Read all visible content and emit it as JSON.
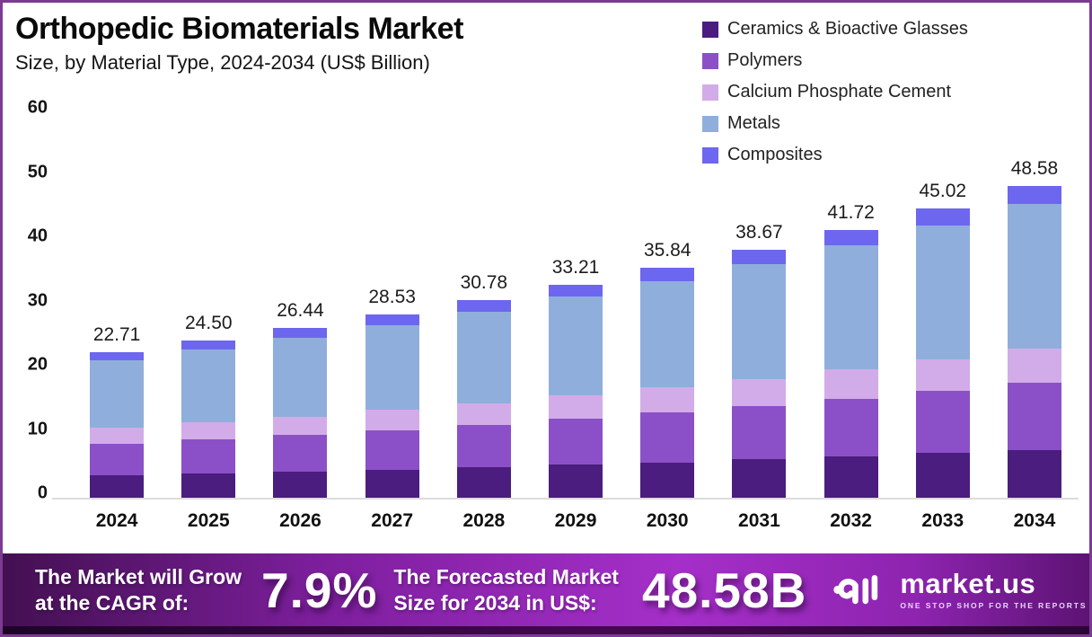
{
  "page": {
    "title": "Orthopedic Biomaterials Market",
    "subtitle": "Size, by Material Type, 2024-2034 (US$ Billion)"
  },
  "colors": {
    "border": "#7C3A93",
    "background": "#FFFFFF",
    "baseline": "#DCDCE0",
    "banner_gradient": [
      "#431051",
      "#A52FC9",
      "#5D1374"
    ],
    "banner_strip": "#2A0733",
    "text_dark": "#0A0A0A",
    "text_light": "#FFFFFF"
  },
  "chart_data": {
    "type": "bar",
    "stacked": true,
    "title": "Orthopedic Biomaterials Market",
    "subtitle": "Size, by Material Type, 2024-2034 (US$ Billion)",
    "unit": "US$ Billion",
    "grid": false,
    "legend_position": "top-right",
    "ylim": [
      0,
      60
    ],
    "y_ticks": [
      0,
      10,
      20,
      30,
      40,
      50,
      60
    ],
    "categories": [
      "2024",
      "2025",
      "2026",
      "2027",
      "2028",
      "2029",
      "2030",
      "2031",
      "2032",
      "2033",
      "2034"
    ],
    "totals": [
      22.71,
      24.5,
      26.44,
      28.53,
      30.78,
      33.21,
      35.84,
      38.67,
      41.72,
      45.02,
      48.58
    ],
    "total_labels": [
      "22.71",
      "24.50",
      "26.44",
      "28.53",
      "30.78",
      "33.21",
      "35.84",
      "38.67",
      "41.72",
      "45.02",
      "48.58"
    ],
    "series": [
      {
        "name": "Ceramics & Bioactive Glasses",
        "color": "#4A1D7E",
        "values": [
          3.5,
          3.77,
          4.07,
          4.39,
          4.74,
          5.11,
          5.52,
          5.96,
          6.42,
          6.93,
          7.48
        ]
      },
      {
        "name": "Polymers",
        "color": "#8B50C8",
        "values": [
          4.88,
          5.27,
          5.68,
          6.13,
          6.62,
          7.14,
          7.71,
          8.31,
          8.97,
          9.68,
          10.44
        ]
      },
      {
        "name": "Calcium Phosphate Cement",
        "color": "#D2ACE8",
        "values": [
          2.5,
          2.7,
          2.91,
          3.14,
          3.39,
          3.65,
          3.94,
          4.25,
          4.59,
          4.95,
          5.34
        ]
      },
      {
        "name": "Metals",
        "color": "#90AEDB",
        "values": [
          10.51,
          11.34,
          12.24,
          13.21,
          14.25,
          15.38,
          16.59,
          17.9,
          19.32,
          20.85,
          22.49
        ]
      },
      {
        "name": "Composites",
        "color": "#6D66EF",
        "values": [
          1.32,
          1.42,
          1.54,
          1.66,
          1.78,
          1.93,
          2.08,
          2.25,
          2.42,
          2.61,
          2.83
        ]
      }
    ]
  },
  "banner": {
    "cagr_label_line1": "The Market will Grow",
    "cagr_label_line2": "at the CAGR of:",
    "cagr_value": "7.9%",
    "forecast_label_line1": "The Forecasted Market",
    "forecast_label_line2": "Size for 2034 in US$:",
    "forecast_value": "48.58B",
    "logo_text": "market.us",
    "logo_tagline": "ONE STOP SHOP FOR THE REPORTS"
  }
}
